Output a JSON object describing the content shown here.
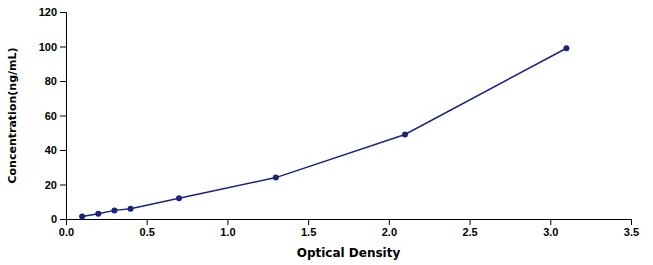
{
  "chart_data": {
    "type": "line",
    "x": [
      0.1,
      0.2,
      0.3,
      0.4,
      0.7,
      1.3,
      2.1,
      3.1
    ],
    "values": [
      1.5,
      3.0,
      5.0,
      6.0,
      12.0,
      24.0,
      49.0,
      99.0
    ],
    "xlabel": "Optical Density",
    "ylabel": "Concentration(ng/mL)",
    "xlim": [
      0,
      3.5
    ],
    "ylim": [
      0,
      120
    ],
    "xticks": [
      {
        "value": 0,
        "label": "0.0"
      },
      0.5,
      {
        "value": 1,
        "label": "1.0"
      },
      1.5,
      {
        "value": 2,
        "label": "2.0"
      },
      2.5,
      {
        "value": 3,
        "label": "3.0"
      },
      3.5
    ],
    "yticks": [
      0,
      20,
      40,
      60,
      80,
      100,
      120
    ],
    "color": "#1a237e",
    "marker": "circle",
    "grid": false
  }
}
